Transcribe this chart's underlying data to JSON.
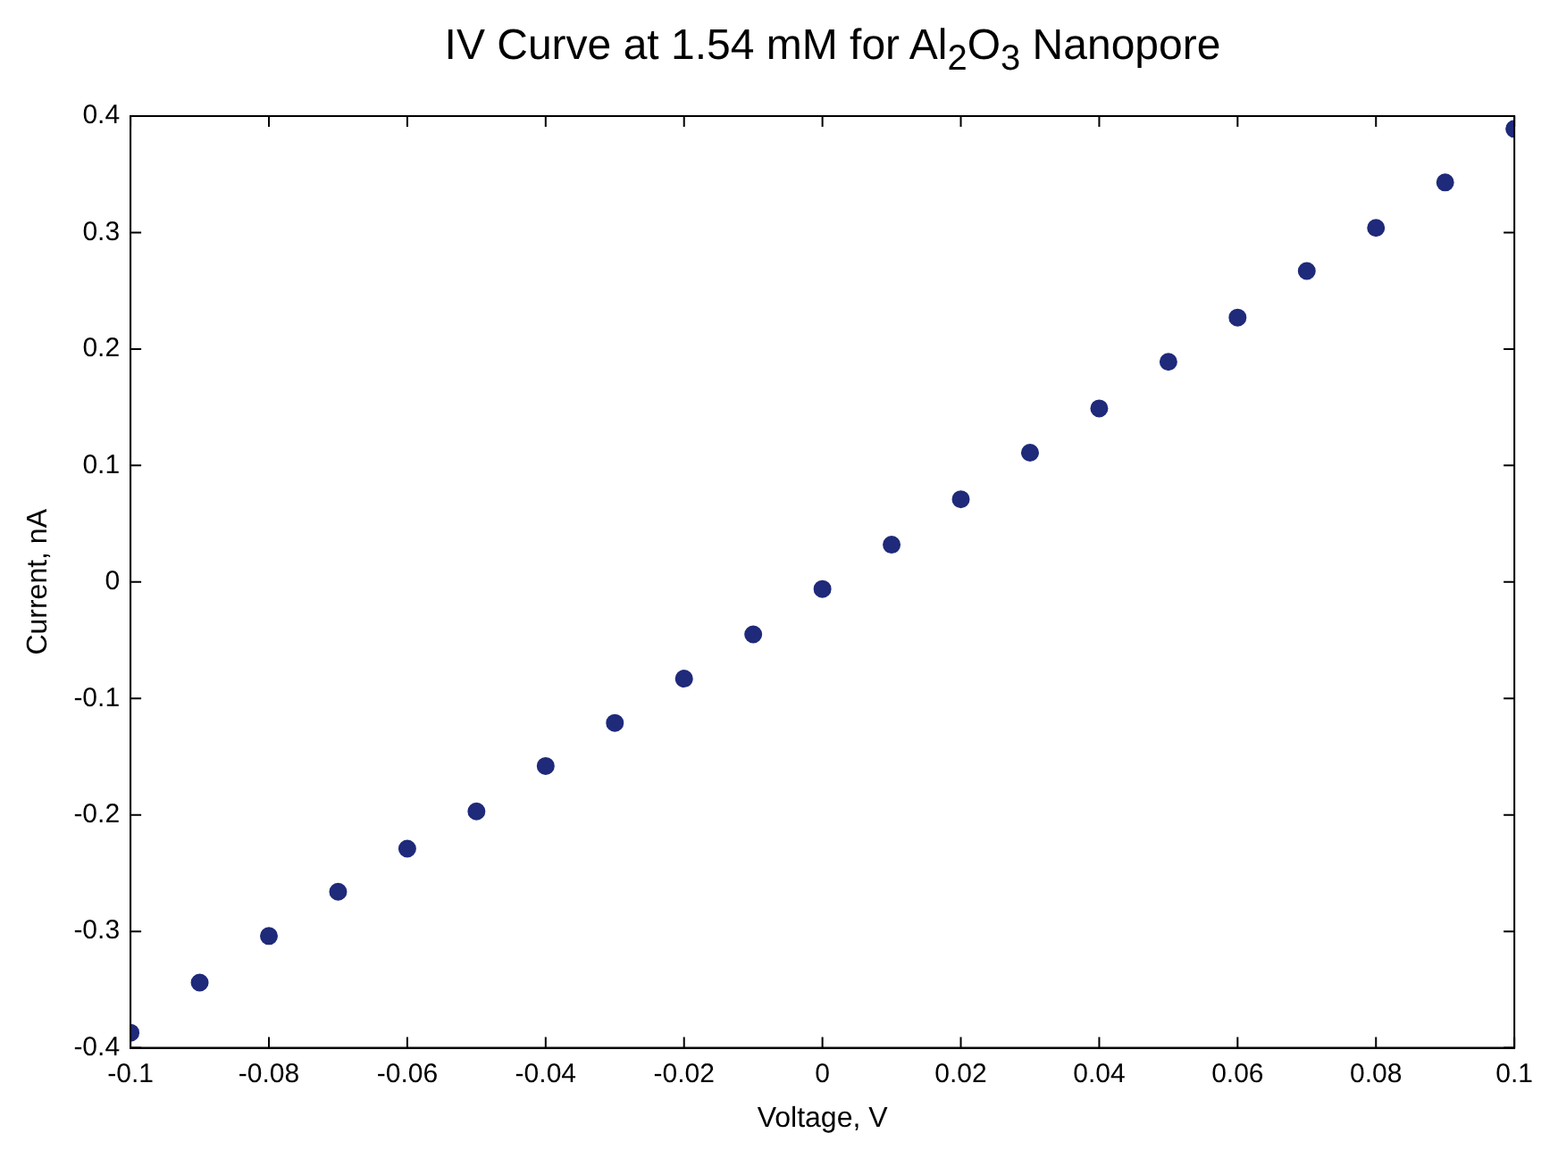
{
  "chart_data": {
    "type": "scatter",
    "title": "IV Curve at 1.54 mM for Al$_{2}$O$_{3}$ Nanopore",
    "xlabel": "Voltage, V",
    "ylabel": "Current, nA",
    "x": [
      -0.1,
      -0.09,
      -0.08,
      -0.07,
      -0.06,
      -0.05,
      -0.04,
      -0.03,
      -0.02,
      -0.01,
      0,
      0.01,
      0.02,
      0.03,
      0.04,
      0.05,
      0.06,
      0.07,
      0.08,
      0.09,
      0.1
    ],
    "series": [
      {
        "color": "#1f2a7a",
        "values": [
          -0.387,
          -0.344,
          -0.304,
          -0.266,
          -0.229,
          -0.197,
          -0.158,
          -0.121,
          -0.083,
          -0.045,
          -0.006,
          0.032,
          0.071,
          0.111,
          0.149,
          0.189,
          0.227,
          0.267,
          0.304,
          0.343,
          0.389
        ]
      }
    ],
    "xlim": [
      -0.1,
      0.1
    ],
    "xticks": [
      -0.1,
      -0.08,
      -0.06,
      -0.04,
      -0.02,
      0,
      0.02,
      0.04,
      0.06,
      0.08,
      0.1
    ],
    "ylim": [
      -0.4,
      0.4
    ],
    "yticks": [
      -0.4,
      -0.3,
      -0.2,
      -0.1,
      0,
      0.1,
      0.2,
      0.3,
      0.4
    ],
    "grid": false,
    "legend": false,
    "marker": "circle"
  }
}
